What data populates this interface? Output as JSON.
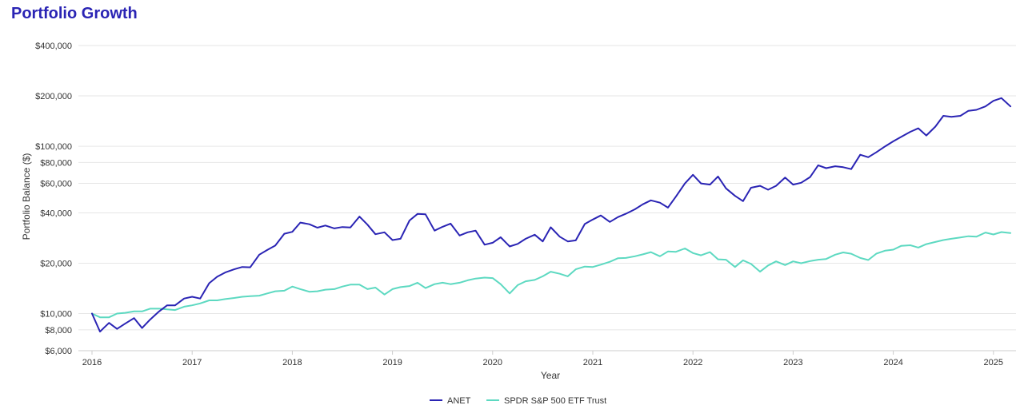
{
  "chart_data": {
    "type": "line",
    "title": "Portfolio Growth",
    "xlabel": "Year",
    "ylabel": "Portfolio Balance ($)",
    "y_scale": "log",
    "ylim": [
      6000,
      400000
    ],
    "xlim": [
      2016.0,
      2025.25
    ],
    "y_ticks": [
      6000,
      8000,
      10000,
      20000,
      40000,
      60000,
      80000,
      100000,
      200000,
      400000
    ],
    "y_tick_labels": [
      "$6,000",
      "$8,000",
      "$10,000",
      "$20,000",
      "$40,000",
      "$60,000",
      "$80,000",
      "$100,000",
      "$200,000",
      "$400,000"
    ],
    "x_ticks": [
      2016,
      2017,
      2018,
      2019,
      2020,
      2021,
      2022,
      2023,
      2024,
      2025
    ],
    "x_tick_labels": [
      "2016",
      "2017",
      "2018",
      "2019",
      "2020",
      "2021",
      "2022",
      "2023",
      "2024",
      "2025"
    ],
    "grid": "horizontal",
    "legend_position": "bottom-center",
    "series": [
      {
        "name": "ANET",
        "color": "#2a24b4",
        "x": [
          2016.0,
          2016.08,
          2016.17,
          2016.25,
          2016.33,
          2016.42,
          2016.5,
          2016.58,
          2016.67,
          2016.75,
          2016.83,
          2016.92,
          2017.0,
          2017.08,
          2017.17,
          2017.25,
          2017.33,
          2017.42,
          2017.5,
          2017.58,
          2017.67,
          2017.75,
          2017.83,
          2017.92,
          2018.0,
          2018.08,
          2018.17,
          2018.25,
          2018.33,
          2018.42,
          2018.5,
          2018.58,
          2018.67,
          2018.75,
          2018.83,
          2018.92,
          2019.0,
          2019.08,
          2019.17,
          2019.25,
          2019.33,
          2019.42,
          2019.5,
          2019.58,
          2019.67,
          2019.75,
          2019.83,
          2019.92,
          2020.0,
          2020.08,
          2020.17,
          2020.25,
          2020.33,
          2020.42,
          2020.5,
          2020.58,
          2020.67,
          2020.75,
          2020.83,
          2020.92,
          2021.0,
          2021.08,
          2021.17,
          2021.25,
          2021.33,
          2021.42,
          2021.5,
          2021.58,
          2021.67,
          2021.75,
          2021.83,
          2021.92,
          2022.0,
          2022.08,
          2022.17,
          2022.25,
          2022.33,
          2022.42,
          2022.5,
          2022.58,
          2022.67,
          2022.75,
          2022.83,
          2022.92,
          2023.0,
          2023.08,
          2023.17,
          2023.25,
          2023.33,
          2023.42,
          2023.5,
          2023.58,
          2023.67,
          2023.75,
          2023.83,
          2023.92,
          2024.0,
          2024.08,
          2024.17,
          2024.25,
          2024.33,
          2024.42,
          2024.5,
          2024.58,
          2024.67,
          2024.75,
          2024.83,
          2024.92,
          2025.0,
          2025.08,
          2025.17
        ],
        "values": [
          10000,
          7800,
          8800,
          8100,
          8700,
          9400,
          8200,
          9200,
          10300,
          11200,
          11200,
          12300,
          12600,
          12300,
          15200,
          16600,
          17600,
          18400,
          19000,
          18900,
          22500,
          24000,
          25500,
          30000,
          30800,
          35000,
          34200,
          32600,
          33600,
          32300,
          32900,
          32700,
          38000,
          34000,
          29800,
          30600,
          27500,
          28000,
          36000,
          39400,
          39200,
          31300,
          33000,
          34500,
          29300,
          30600,
          31300,
          25800,
          26500,
          28600,
          25200,
          26100,
          28000,
          29600,
          27000,
          32800,
          28800,
          27000,
          27400,
          34300,
          36500,
          38600,
          35300,
          37700,
          39500,
          42000,
          45000,
          47500,
          46000,
          43000,
          50000,
          60000,
          67500,
          60000,
          59000,
          66000,
          56000,
          50500,
          47000,
          56500,
          58000,
          55000,
          58000,
          65000,
          59000,
          60500,
          65500,
          77000,
          74000,
          76000,
          75000,
          73000,
          89000,
          86000,
          92000,
          100000,
          107000,
          114000,
          122000,
          128000,
          116000,
          131000,
          152000,
          150000,
          152000,
          163000,
          165000,
          173000,
          187000,
          194000,
          173000
        ]
      },
      {
        "name": "SPDR S&P 500 ETF Trust",
        "color": "#5dd9c1",
        "x": [
          2016.0,
          2016.08,
          2016.17,
          2016.25,
          2016.33,
          2016.42,
          2016.5,
          2016.58,
          2016.67,
          2016.75,
          2016.83,
          2016.92,
          2017.0,
          2017.08,
          2017.17,
          2017.25,
          2017.33,
          2017.42,
          2017.5,
          2017.58,
          2017.67,
          2017.75,
          2017.83,
          2017.92,
          2018.0,
          2018.08,
          2018.17,
          2018.25,
          2018.33,
          2018.42,
          2018.5,
          2018.58,
          2018.67,
          2018.75,
          2018.83,
          2018.92,
          2019.0,
          2019.08,
          2019.17,
          2019.25,
          2019.33,
          2019.42,
          2019.5,
          2019.58,
          2019.67,
          2019.75,
          2019.83,
          2019.92,
          2020.0,
          2020.08,
          2020.17,
          2020.25,
          2020.33,
          2020.42,
          2020.5,
          2020.58,
          2020.67,
          2020.75,
          2020.83,
          2020.92,
          2021.0,
          2021.08,
          2021.17,
          2021.25,
          2021.33,
          2021.42,
          2021.5,
          2021.58,
          2021.67,
          2021.75,
          2021.83,
          2021.92,
          2022.0,
          2022.08,
          2022.17,
          2022.25,
          2022.33,
          2022.42,
          2022.5,
          2022.58,
          2022.67,
          2022.75,
          2022.83,
          2022.92,
          2023.0,
          2023.08,
          2023.17,
          2023.25,
          2023.33,
          2023.42,
          2023.5,
          2023.58,
          2023.67,
          2023.75,
          2023.83,
          2023.92,
          2024.0,
          2024.08,
          2024.17,
          2024.25,
          2024.33,
          2024.42,
          2024.5,
          2024.58,
          2024.67,
          2024.75,
          2024.83,
          2024.92,
          2025.0,
          2025.08,
          2025.17
        ],
        "values": [
          10000,
          9500,
          9500,
          10000,
          10100,
          10300,
          10300,
          10700,
          10700,
          10600,
          10500,
          11000,
          11200,
          11500,
          12000,
          12000,
          12200,
          12400,
          12600,
          12700,
          12800,
          13200,
          13600,
          13700,
          14500,
          14000,
          13500,
          13600,
          13900,
          14000,
          14500,
          14900,
          14900,
          14000,
          14300,
          13000,
          14000,
          14400,
          14600,
          15300,
          14200,
          15000,
          15300,
          15000,
          15300,
          15800,
          16200,
          16400,
          16300,
          15000,
          13200,
          14800,
          15600,
          15900,
          16700,
          17800,
          17300,
          16700,
          18400,
          19100,
          19000,
          19600,
          20400,
          21400,
          21500,
          22000,
          22600,
          23300,
          22000,
          23500,
          23400,
          24500,
          23000,
          22300,
          23300,
          21100,
          21000,
          19000,
          20800,
          19800,
          17800,
          19400,
          20500,
          19500,
          20500,
          20000,
          20600,
          21000,
          21200,
          22500,
          23200,
          22800,
          21500,
          20900,
          22800,
          23800,
          24100,
          25400,
          25600,
          24800,
          26000,
          26800,
          27500,
          28000,
          28500,
          29000,
          28800,
          30500,
          29700,
          30700,
          30300
        ]
      }
    ]
  }
}
